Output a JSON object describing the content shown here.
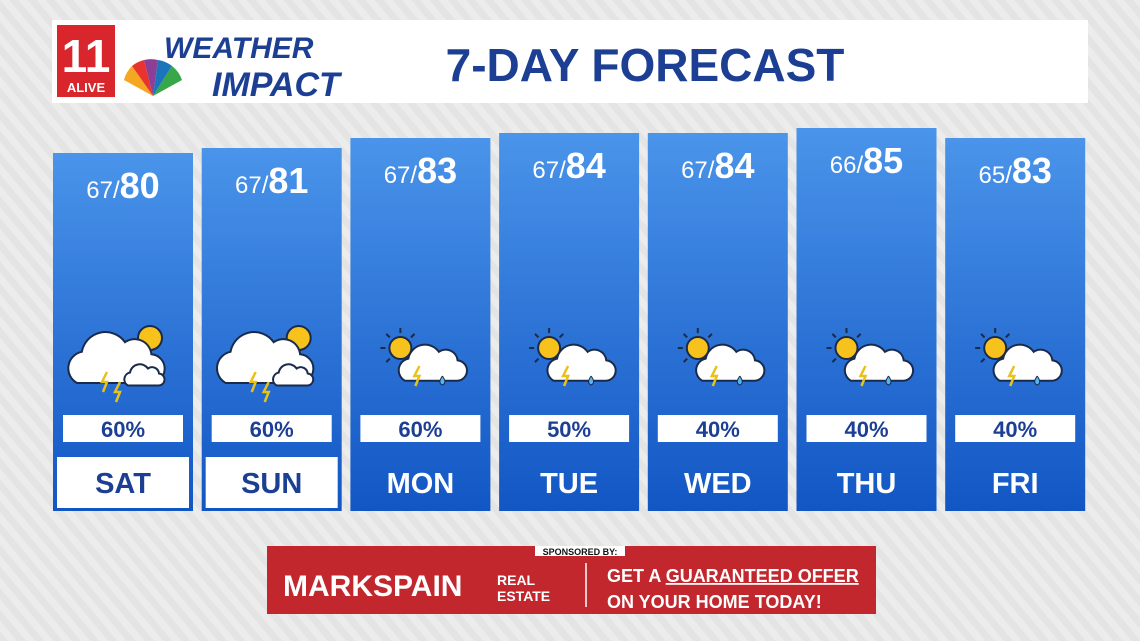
{
  "header": {
    "logo_number": "11",
    "logo_text": "ALIVE",
    "brand_top": "WEATHER",
    "brand_bottom": "IMPACT",
    "title": "7-DAY FORECAST"
  },
  "separator": "/",
  "days": [
    {
      "day": "SAT",
      "low": 67,
      "high": 80,
      "precip": "60%",
      "boxed": true,
      "icon": "storm-sun-behind"
    },
    {
      "day": "SUN",
      "low": 67,
      "high": 81,
      "precip": "60%",
      "boxed": true,
      "icon": "storm-sun-behind"
    },
    {
      "day": "MON",
      "low": 67,
      "high": 83,
      "precip": "60%",
      "boxed": false,
      "icon": "sun-storm"
    },
    {
      "day": "TUE",
      "low": 67,
      "high": 84,
      "precip": "50%",
      "boxed": false,
      "icon": "sun-storm"
    },
    {
      "day": "WED",
      "low": 67,
      "high": 84,
      "precip": "40%",
      "boxed": false,
      "icon": "sun-storm"
    },
    {
      "day": "THU",
      "low": 66,
      "high": 85,
      "precip": "40%",
      "boxed": false,
      "icon": "sun-storm"
    },
    {
      "day": "FRI",
      "low": 65,
      "high": 83,
      "precip": "40%",
      "boxed": false,
      "icon": "sun-storm"
    }
  ],
  "sponsor": {
    "label": "SPONSORED BY:",
    "brand": "MARKSPAIN",
    "brand_sub1": "REAL",
    "brand_sub2": "ESTATE",
    "line1a": "GET A",
    "line1b": "GUARANTEED OFFER",
    "line2a": "ON YOUR HOME",
    "line2b": "TODAY!"
  }
}
